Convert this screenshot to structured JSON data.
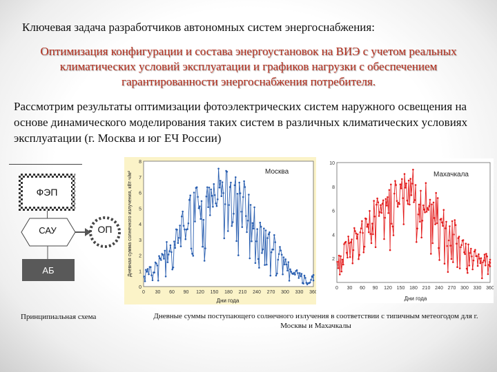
{
  "intro": "Ключевая задача разработчиков автономных систем энергоснабжения:",
  "task": "Оптимизация конфигурации и состава энергоустановок на ВИЭ с учетом реальных климатических условий эксплуатации и графиков нагрузки с обеспечением гарантированности энергоснабжения потребителя.",
  "body_text": "Рассмотрим результаты оптимизации фотоэлектрических систем наружного освещения на основе динамического моделирования таких систем в различных климатических условиях эксплуатации (г. Москва и юг ЕЧ России)",
  "schema": {
    "fep": "ФЭП",
    "sau": "САУ",
    "op": "ОП",
    "ab": "АБ",
    "caption": "Принципиальная схема"
  },
  "chart_caption": "Дневные суммы поступающего солнечного излучения в соответствии с типичным метеогодом для г. Москвы и Махачкалы",
  "colors": {
    "title_red": "#b5301f",
    "moscow_series": "#2a5fb0",
    "mkh_series": "#e31c1c",
    "moscow_bg": "#fbf3c8"
  },
  "chart_data": [
    {
      "type": "line",
      "legend": "Москва",
      "ylabel": "Дневная сумма солнечного излучения, кВт·ч/м²",
      "xlabel": "Дни года",
      "xlim": [
        0,
        360
      ],
      "ylim": [
        0,
        8
      ],
      "xticks": [
        "0",
        "30",
        "60",
        "90",
        "120",
        "150",
        "180",
        "210",
        "240",
        "270",
        "300",
        "330",
        "360"
      ],
      "yticks": [
        "0",
        "1",
        "2",
        "3",
        "4",
        "5",
        "6",
        "7",
        "8"
      ],
      "envelope": {
        "x": [
          0,
          30,
          60,
          90,
          120,
          150,
          170,
          180,
          210,
          240,
          270,
          300,
          330,
          360
        ],
        "max": [
          1.0,
          1.8,
          3.6,
          5.4,
          6.8,
          7.5,
          7.7,
          7.6,
          7.0,
          5.6,
          3.8,
          1.8,
          0.9,
          0.8
        ],
        "min": [
          0.1,
          0.2,
          0.5,
          1.0,
          1.5,
          1.8,
          2.0,
          1.9,
          1.5,
          1.0,
          0.5,
          0.2,
          0.1,
          0.1
        ]
      }
    },
    {
      "type": "line",
      "legend": "Махачкала",
      "ylabel": "",
      "xlabel": "Дни года",
      "xlim": [
        0,
        360
      ],
      "ylim": [
        0,
        10
      ],
      "xticks": [
        "0",
        "30",
        "60",
        "90",
        "120",
        "150",
        "180",
        "210",
        "240",
        "270",
        "300",
        "330",
        "360"
      ],
      "yticks": [
        "2",
        "4",
        "6",
        "8",
        "10"
      ],
      "envelope": {
        "x": [
          0,
          30,
          60,
          90,
          120,
          150,
          170,
          180,
          210,
          240,
          270,
          300,
          330,
          360
        ],
        "max": [
          2.8,
          4.2,
          5.5,
          7.0,
          8.3,
          9.2,
          9.6,
          9.5,
          8.8,
          7.5,
          5.8,
          3.8,
          2.6,
          2.4
        ],
        "min": [
          0.3,
          0.5,
          0.8,
          1.2,
          1.8,
          2.5,
          3.0,
          2.8,
          2.0,
          1.3,
          0.6,
          0.4,
          0.3,
          0.3
        ]
      }
    }
  ]
}
